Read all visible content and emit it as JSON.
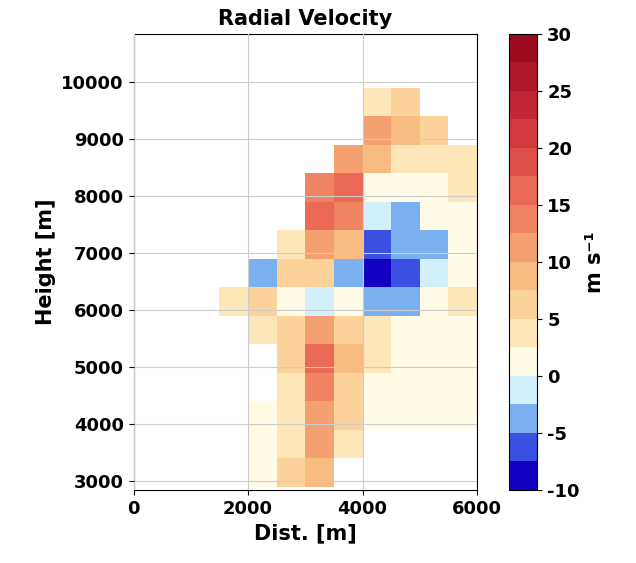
{
  "chart_data": {
    "type": "heatmap",
    "title": "Radial Velocity",
    "x_label": "Dist. [m]",
    "y_label": "Height [m]",
    "xlim": [
      0,
      6000
    ],
    "ylim": [
      2850,
      10850
    ],
    "xticks": [
      0,
      2000,
      4000,
      6000
    ],
    "yticks": [
      3000,
      4000,
      5000,
      6000,
      7000,
      8000,
      9000,
      10000
    ],
    "grid": true,
    "x_edges": [
      0,
      500,
      1000,
      1500,
      2000,
      2500,
      3000,
      3500,
      4000,
      4500,
      5000,
      5500,
      6000
    ],
    "y_edges": [
      2900,
      3400,
      3900,
      4400,
      4900,
      5400,
      5900,
      6400,
      6900,
      7400,
      7900,
      8400,
      8900,
      9400,
      9900,
      10400,
      10900
    ],
    "cells": [
      [
        null,
        null,
        null,
        null,
        2,
        5,
        8,
        null,
        null,
        null,
        null,
        null
      ],
      [
        null,
        null,
        null,
        null,
        2,
        4,
        10,
        4,
        null,
        null,
        null,
        null
      ],
      [
        null,
        null,
        null,
        null,
        2,
        3,
        12,
        5,
        2,
        2,
        2,
        2
      ],
      [
        null,
        null,
        null,
        null,
        null,
        4,
        14,
        6,
        2,
        2,
        2,
        2
      ],
      [
        null,
        null,
        null,
        null,
        null,
        5,
        15,
        8,
        3,
        2,
        2,
        2
      ],
      [
        null,
        null,
        null,
        null,
        3,
        6,
        10,
        6,
        3,
        2,
        2,
        2
      ],
      [
        null,
        null,
        null,
        4,
        5,
        0,
        -2,
        0,
        -5,
        -4,
        2,
        3
      ],
      [
        null,
        null,
        null,
        null,
        -3,
        6,
        5,
        -4,
        -8,
        -6,
        -2,
        2
      ],
      [
        null,
        null,
        null,
        null,
        null,
        4,
        12,
        8,
        -6,
        -5,
        -3,
        0
      ],
      [
        null,
        null,
        null,
        null,
        null,
        null,
        16,
        14,
        -2,
        -4,
        0,
        2
      ],
      [
        null,
        null,
        null,
        null,
        null,
        null,
        14,
        16,
        2,
        0,
        2,
        3
      ],
      [
        null,
        null,
        null,
        null,
        null,
        null,
        null,
        10,
        8,
        4,
        3,
        4
      ],
      [
        null,
        null,
        null,
        null,
        null,
        null,
        null,
        null,
        10,
        8,
        5,
        null
      ],
      [
        null,
        null,
        null,
        null,
        null,
        null,
        null,
        null,
        4,
        5,
        null,
        null
      ],
      [
        null,
        null,
        null,
        null,
        null,
        null,
        null,
        null,
        null,
        null,
        null,
        null
      ],
      [
        null,
        null,
        null,
        null,
        null,
        null,
        null,
        null,
        null,
        null,
        null,
        null
      ]
    ],
    "colorbar_range": [
      -10,
      30
    ],
    "colorbar_ticks": [
      -10,
      -5,
      0,
      5,
      10,
      15,
      20,
      25,
      30
    ],
    "colorbar_label": "m s⁻¹"
  }
}
